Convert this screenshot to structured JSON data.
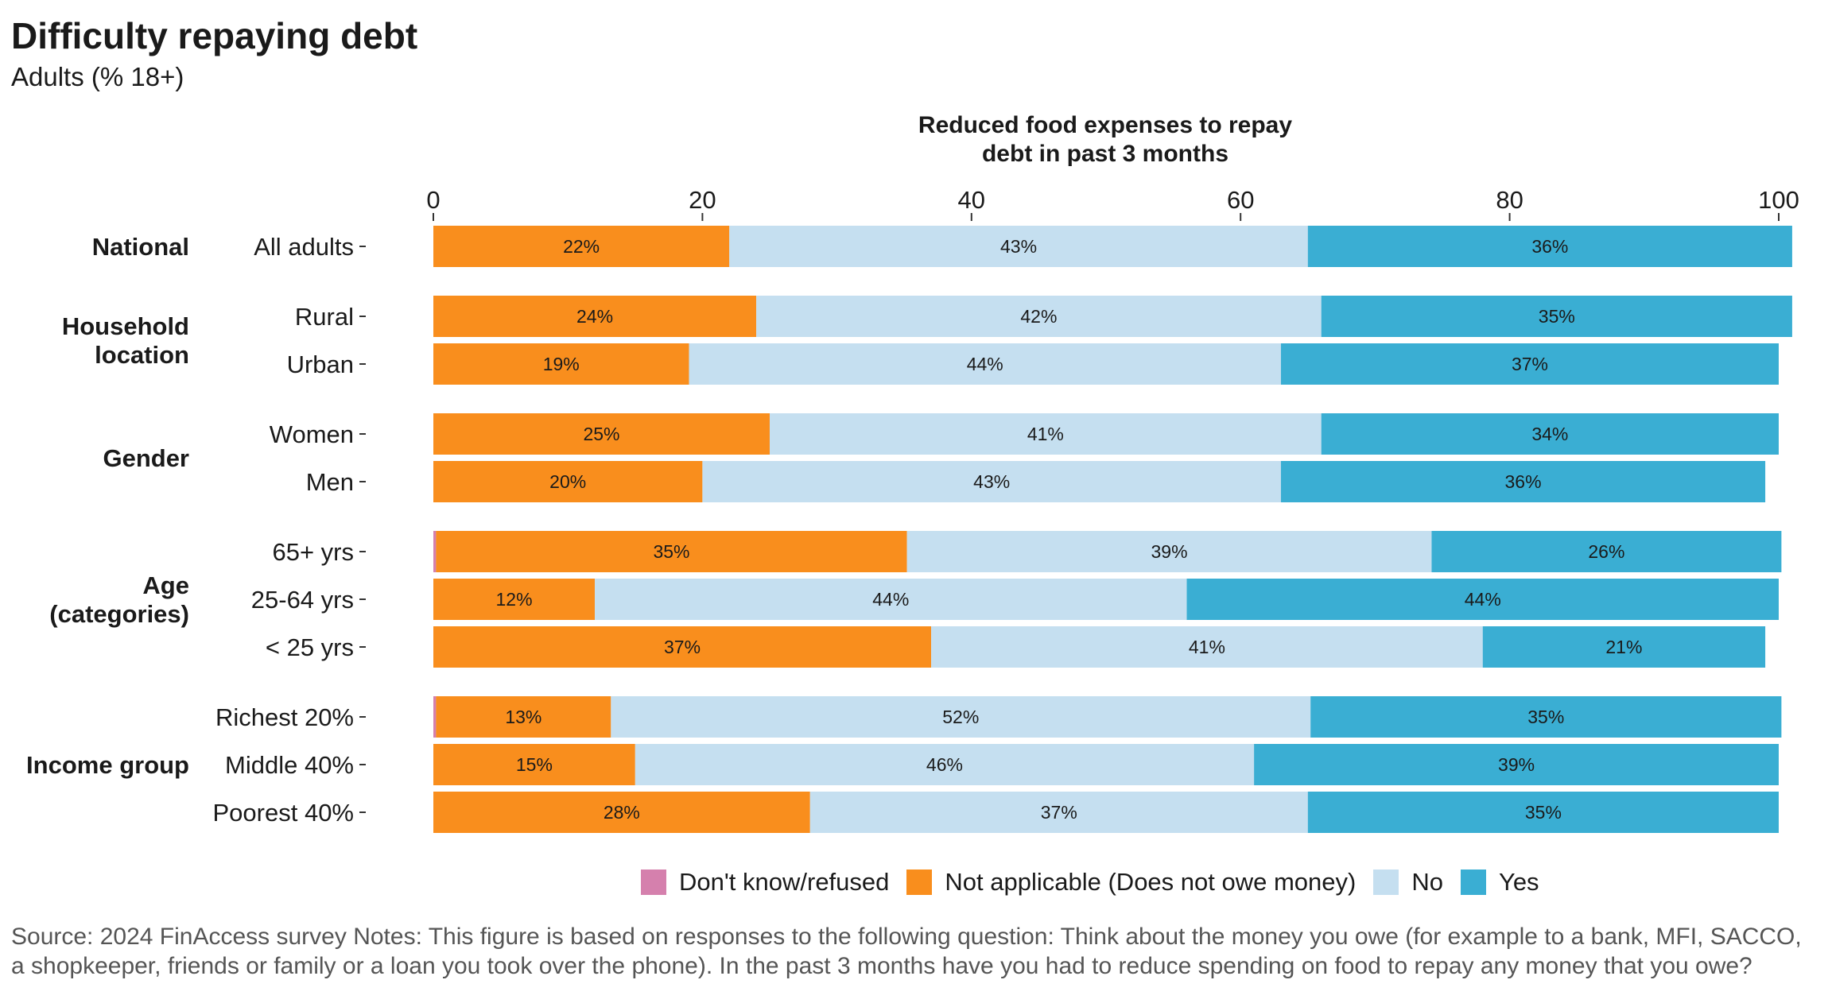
{
  "title": "Difficulty repaying debt",
  "subtitle": "Adults (% 18+)",
  "chart_data": {
    "type": "bar",
    "orientation": "horizontal-stacked",
    "axis_title_lines": [
      "Reduced food expenses to repay",
      "debt in past 3 months"
    ],
    "xlim": [
      0,
      100
    ],
    "xticks": [
      0,
      20,
      40,
      60,
      80,
      100
    ],
    "series_names": [
      "Don't know/refused",
      "Not applicable (Does not owe money)",
      "No",
      "Yes"
    ],
    "colors": [
      "#d580ad",
      "#f98e1d",
      "#c5dff0",
      "#3aaed3"
    ],
    "groups": [
      {
        "label": "National",
        "rows": [
          {
            "label": "All adults",
            "values": [
              0,
              22,
              43,
              36
            ],
            "labels": [
              "",
              "22%",
              "43%",
              "36%"
            ]
          }
        ]
      },
      {
        "label": "Household location",
        "label_lines": [
          "Household",
          "location"
        ],
        "rows": [
          {
            "label": "Rural",
            "values": [
              0,
              24,
              42,
              35
            ],
            "labels": [
              "",
              "24%",
              "42%",
              "35%"
            ]
          },
          {
            "label": "Urban",
            "values": [
              0,
              19,
              44,
              37
            ],
            "labels": [
              "",
              "19%",
              "44%",
              "37%"
            ]
          }
        ]
      },
      {
        "label": "Gender",
        "rows": [
          {
            "label": "Women",
            "values": [
              0,
              25,
              41,
              34
            ],
            "labels": [
              "",
              "25%",
              "41%",
              "34%"
            ]
          },
          {
            "label": "Men",
            "values": [
              0,
              20,
              43,
              36
            ],
            "labels": [
              "",
              "20%",
              "43%",
              "36%"
            ]
          }
        ]
      },
      {
        "label": "Age (categories)",
        "label_lines": [
          "Age",
          "(categories)"
        ],
        "rows": [
          {
            "label": "65+ yrs",
            "values": [
              0.2,
              35,
              39,
              26
            ],
            "labels": [
              "",
              "35%",
              "39%",
              "26%"
            ]
          },
          {
            "label": "25-64 yrs",
            "values": [
              0,
              12,
              44,
              44
            ],
            "labels": [
              "",
              "12%",
              "44%",
              "44%"
            ]
          },
          {
            "label": "< 25 yrs",
            "values": [
              0,
              37,
              41,
              21
            ],
            "labels": [
              "",
              "37%",
              "41%",
              "21%"
            ]
          }
        ]
      },
      {
        "label": "Income group",
        "rows": [
          {
            "label": "Richest 20%",
            "values": [
              0.2,
              13,
              52,
              35
            ],
            "labels": [
              "",
              "13%",
              "52%",
              "35%"
            ]
          },
          {
            "label": "Middle 40%",
            "values": [
              0,
              15,
              46,
              39
            ],
            "labels": [
              "",
              "15%",
              "46%",
              "39%"
            ]
          },
          {
            "label": "Poorest 40%",
            "values": [
              0,
              28,
              37,
              35
            ],
            "labels": [
              "",
              "28%",
              "37%",
              "35%"
            ]
          }
        ]
      }
    ]
  },
  "legend": [
    {
      "label": "Don't know/refused",
      "color": "#d580ad"
    },
    {
      "label": "Not applicable (Does not owe money)",
      "color": "#f98e1d"
    },
    {
      "label": "No",
      "color": "#c5dff0"
    },
    {
      "label": "Yes",
      "color": "#3aaed3"
    }
  ],
  "source": "Source: 2024 FinAccess survey Notes: This figure is based on responses to the following question: Think about the money you owe (for example to a bank, MFI, SACCO, a shopkeeper, friends or family or a loan you took over the phone). In the past 3 months have you had to reduce spending on food to repay any money that you owe?"
}
